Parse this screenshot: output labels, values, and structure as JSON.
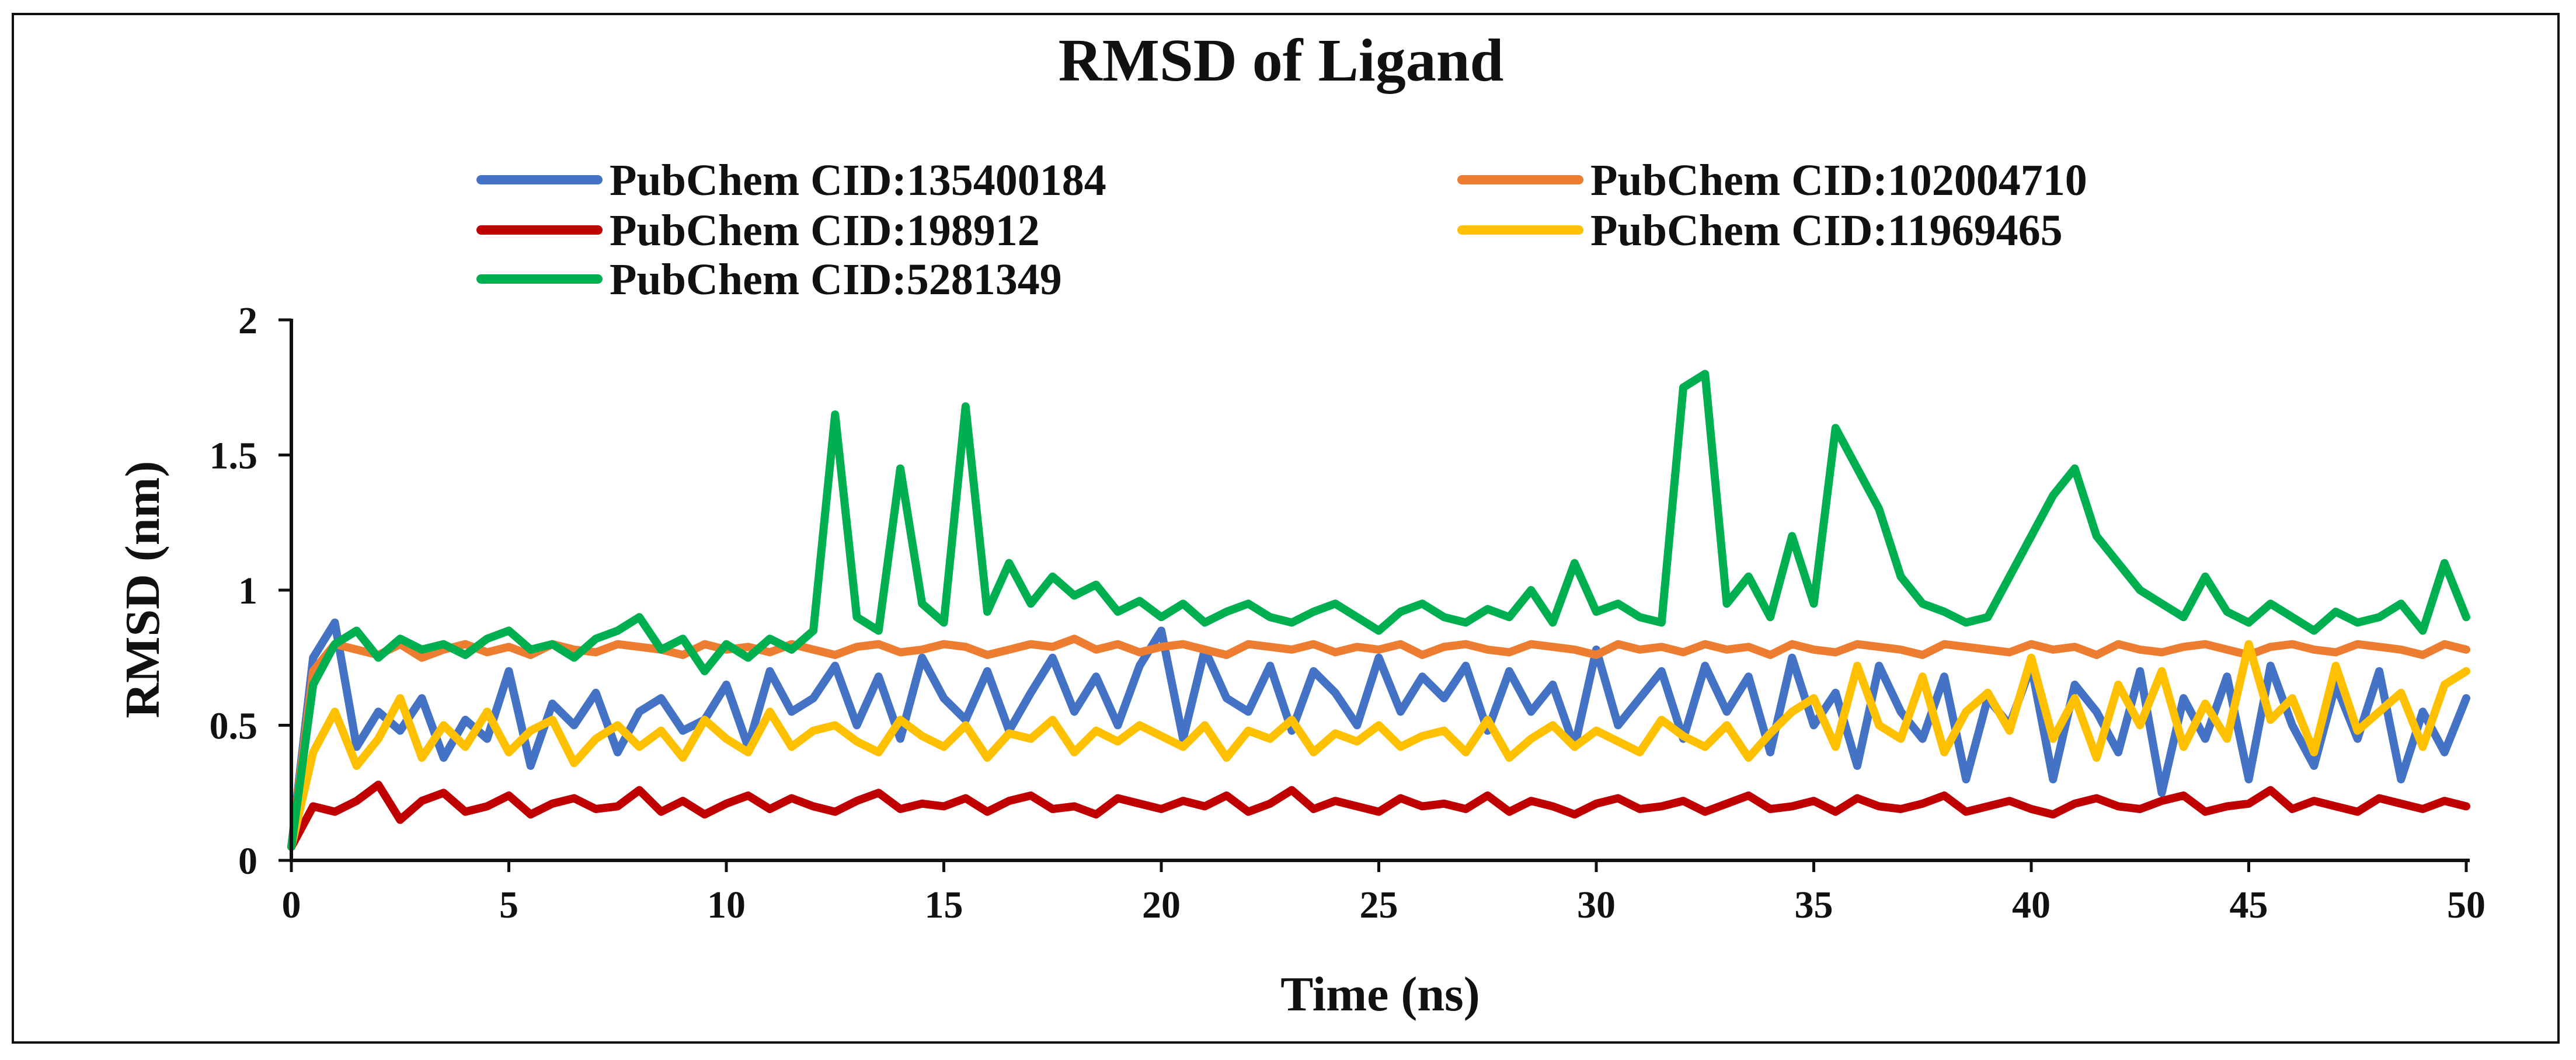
{
  "chart_data": {
    "type": "line",
    "title": "RMSD of Ligand",
    "xlabel": "Time (ns)",
    "ylabel": "RMSD (nm)",
    "xlim": [
      0,
      50
    ],
    "ylim": [
      0,
      2
    ],
    "xticks": [
      "0",
      "5",
      "10",
      "15",
      "20",
      "25",
      "30",
      "35",
      "40",
      "45",
      "50"
    ],
    "yticks": [
      "0",
      "0.5",
      "1",
      "1.5",
      "2"
    ],
    "grid": false,
    "legend_position": "top",
    "x": [
      0,
      0.5,
      1,
      1.5,
      2,
      2.5,
      3,
      3.5,
      4,
      4.5,
      5,
      5.5,
      6,
      6.5,
      7,
      7.5,
      8,
      8.5,
      9,
      9.5,
      10,
      10.5,
      11,
      11.5,
      12,
      12.5,
      13,
      13.5,
      14,
      14.5,
      15,
      15.5,
      16,
      16.5,
      17,
      17.5,
      18,
      18.5,
      19,
      19.5,
      20,
      20.5,
      21,
      21.5,
      22,
      22.5,
      23,
      23.5,
      24,
      24.5,
      25,
      25.5,
      26,
      26.5,
      27,
      27.5,
      28,
      28.5,
      29,
      29.5,
      30,
      30.5,
      31,
      31.5,
      32,
      32.5,
      33,
      33.5,
      34,
      34.5,
      35,
      35.5,
      36,
      36.5,
      37,
      37.5,
      38,
      38.5,
      39,
      39.5,
      40,
      40.5,
      41,
      41.5,
      42,
      42.5,
      43,
      43.5,
      44,
      44.5,
      45,
      45.5,
      46,
      46.5,
      47,
      47.5,
      48,
      48.5,
      49,
      49.5,
      50
    ],
    "series": [
      {
        "name": "PubChem CID:135400184",
        "color": "#4472C4",
        "values": [
          0.05,
          0.75,
          0.88,
          0.42,
          0.55,
          0.48,
          0.6,
          0.38,
          0.52,
          0.45,
          0.7,
          0.35,
          0.58,
          0.5,
          0.62,
          0.4,
          0.55,
          0.6,
          0.48,
          0.52,
          0.65,
          0.42,
          0.7,
          0.55,
          0.6,
          0.72,
          0.5,
          0.68,
          0.45,
          0.75,
          0.6,
          0.52,
          0.7,
          0.48,
          0.62,
          0.75,
          0.55,
          0.68,
          0.5,
          0.72,
          0.85,
          0.45,
          0.78,
          0.6,
          0.55,
          0.72,
          0.48,
          0.7,
          0.62,
          0.5,
          0.75,
          0.55,
          0.68,
          0.6,
          0.72,
          0.48,
          0.7,
          0.55,
          0.65,
          0.42,
          0.78,
          0.5,
          0.6,
          0.7,
          0.45,
          0.72,
          0.55,
          0.68,
          0.4,
          0.75,
          0.5,
          0.62,
          0.35,
          0.72,
          0.55,
          0.45,
          0.68,
          0.3,
          0.6,
          0.5,
          0.72,
          0.3,
          0.65,
          0.55,
          0.4,
          0.7,
          0.25,
          0.6,
          0.45,
          0.68,
          0.3,
          0.72,
          0.5,
          0.35,
          0.65,
          0.45,
          0.7,
          0.3,
          0.55,
          0.4,
          0.6
        ]
      },
      {
        "name": "PubChem CID:102004710",
        "color": "#ED7D31",
        "values": [
          0.05,
          0.7,
          0.8,
          0.78,
          0.76,
          0.8,
          0.75,
          0.78,
          0.8,
          0.77,
          0.79,
          0.76,
          0.8,
          0.78,
          0.77,
          0.8,
          0.79,
          0.78,
          0.76,
          0.8,
          0.78,
          0.79,
          0.77,
          0.8,
          0.78,
          0.76,
          0.79,
          0.8,
          0.77,
          0.78,
          0.8,
          0.79,
          0.76,
          0.78,
          0.8,
          0.79,
          0.82,
          0.78,
          0.8,
          0.77,
          0.79,
          0.8,
          0.78,
          0.76,
          0.8,
          0.79,
          0.78,
          0.8,
          0.77,
          0.79,
          0.78,
          0.8,
          0.76,
          0.79,
          0.8,
          0.78,
          0.77,
          0.8,
          0.79,
          0.78,
          0.76,
          0.8,
          0.78,
          0.79,
          0.77,
          0.8,
          0.78,
          0.79,
          0.76,
          0.8,
          0.78,
          0.77,
          0.8,
          0.79,
          0.78,
          0.76,
          0.8,
          0.79,
          0.78,
          0.77,
          0.8,
          0.78,
          0.79,
          0.76,
          0.8,
          0.78,
          0.77,
          0.79,
          0.8,
          0.78,
          0.76,
          0.79,
          0.8,
          0.78,
          0.77,
          0.8,
          0.79,
          0.78,
          0.76,
          0.8,
          0.78
        ]
      },
      {
        "name": "PubChem CID:198912",
        "color": "#C00000",
        "values": [
          0.05,
          0.2,
          0.18,
          0.22,
          0.28,
          0.15,
          0.22,
          0.25,
          0.18,
          0.2,
          0.24,
          0.17,
          0.21,
          0.23,
          0.19,
          0.2,
          0.26,
          0.18,
          0.22,
          0.17,
          0.21,
          0.24,
          0.19,
          0.23,
          0.2,
          0.18,
          0.22,
          0.25,
          0.19,
          0.21,
          0.2,
          0.23,
          0.18,
          0.22,
          0.24,
          0.19,
          0.2,
          0.17,
          0.23,
          0.21,
          0.19,
          0.22,
          0.2,
          0.24,
          0.18,
          0.21,
          0.26,
          0.19,
          0.22,
          0.2,
          0.18,
          0.23,
          0.2,
          0.21,
          0.19,
          0.24,
          0.18,
          0.22,
          0.2,
          0.17,
          0.21,
          0.23,
          0.19,
          0.2,
          0.22,
          0.18,
          0.21,
          0.24,
          0.19,
          0.2,
          0.22,
          0.18,
          0.23,
          0.2,
          0.19,
          0.21,
          0.24,
          0.18,
          0.2,
          0.22,
          0.19,
          0.17,
          0.21,
          0.23,
          0.2,
          0.19,
          0.22,
          0.24,
          0.18,
          0.2,
          0.21,
          0.26,
          0.19,
          0.22,
          0.2,
          0.18,
          0.23,
          0.21,
          0.19,
          0.22,
          0.2
        ]
      },
      {
        "name": "PubChem CID:11969465",
        "color": "#FFC000",
        "values": [
          0.05,
          0.4,
          0.55,
          0.35,
          0.45,
          0.6,
          0.38,
          0.5,
          0.42,
          0.55,
          0.4,
          0.48,
          0.52,
          0.36,
          0.45,
          0.5,
          0.42,
          0.48,
          0.38,
          0.52,
          0.45,
          0.4,
          0.55,
          0.42,
          0.48,
          0.5,
          0.44,
          0.4,
          0.52,
          0.46,
          0.42,
          0.5,
          0.38,
          0.47,
          0.45,
          0.52,
          0.4,
          0.48,
          0.44,
          0.5,
          0.46,
          0.42,
          0.5,
          0.38,
          0.48,
          0.45,
          0.52,
          0.4,
          0.47,
          0.44,
          0.5,
          0.42,
          0.46,
          0.48,
          0.4,
          0.52,
          0.38,
          0.45,
          0.5,
          0.42,
          0.48,
          0.44,
          0.4,
          0.52,
          0.46,
          0.42,
          0.5,
          0.38,
          0.47,
          0.55,
          0.6,
          0.42,
          0.72,
          0.5,
          0.45,
          0.68,
          0.4,
          0.55,
          0.62,
          0.48,
          0.75,
          0.45,
          0.6,
          0.38,
          0.65,
          0.5,
          0.7,
          0.42,
          0.58,
          0.45,
          0.8,
          0.52,
          0.6,
          0.4,
          0.72,
          0.48,
          0.55,
          0.62,
          0.42,
          0.65,
          0.7
        ]
      },
      {
        "name": "PubChem CID:5281349",
        "color": "#00B050",
        "values": [
          0.05,
          0.65,
          0.8,
          0.85,
          0.75,
          0.82,
          0.78,
          0.8,
          0.76,
          0.82,
          0.85,
          0.78,
          0.8,
          0.75,
          0.82,
          0.85,
          0.9,
          0.78,
          0.82,
          0.7,
          0.8,
          0.75,
          0.82,
          0.78,
          0.85,
          1.65,
          0.9,
          0.85,
          1.45,
          0.95,
          0.88,
          1.68,
          0.92,
          1.1,
          0.95,
          1.05,
          0.98,
          1.02,
          0.92,
          0.96,
          0.9,
          0.95,
          0.88,
          0.92,
          0.95,
          0.9,
          0.88,
          0.92,
          0.95,
          0.9,
          0.85,
          0.92,
          0.95,
          0.9,
          0.88,
          0.93,
          0.9,
          1.0,
          0.88,
          1.1,
          0.92,
          0.95,
          0.9,
          0.88,
          1.75,
          1.8,
          0.95,
          1.05,
          0.9,
          1.2,
          0.95,
          1.6,
          1.45,
          1.3,
          1.05,
          0.95,
          0.92,
          0.88,
          0.9,
          1.05,
          1.2,
          1.35,
          1.45,
          1.2,
          1.1,
          1.0,
          0.95,
          0.9,
          1.05,
          0.92,
          0.88,
          0.95,
          0.9,
          0.85,
          0.92,
          0.88,
          0.9,
          0.95,
          0.85,
          1.1,
          0.9
        ]
      }
    ]
  }
}
